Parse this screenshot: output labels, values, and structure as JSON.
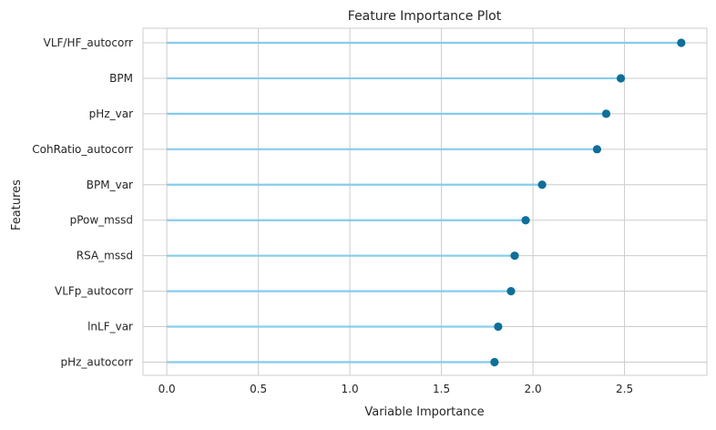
{
  "chart_data": {
    "type": "lollipop",
    "title": "Feature Importance Plot",
    "xlabel": "Variable Importance",
    "ylabel": "Features",
    "xlim": [
      -0.13,
      2.95
    ],
    "xticks": [
      0.0,
      0.5,
      1.0,
      1.5,
      2.0,
      2.5
    ],
    "xtick_labels": [
      "0.0",
      "0.5",
      "1.0",
      "1.5",
      "2.0",
      "2.5"
    ],
    "grid": true,
    "categories": [
      "VLF/HF_autocorr",
      "BPM",
      "pHz_var",
      "CohRatio_autocorr",
      "BPM_var",
      "pPow_mssd",
      "RSA_mssd",
      "VLFp_autocorr",
      "lnLF_var",
      "pHz_autocorr"
    ],
    "values": [
      2.81,
      2.48,
      2.4,
      2.35,
      2.05,
      1.96,
      1.9,
      1.88,
      1.81,
      1.79
    ],
    "colors": {
      "stem": "#86cbec",
      "marker": "#0e6f99",
      "grid": "#cccccc",
      "frame": "#cccccc",
      "text": "#262626"
    }
  }
}
